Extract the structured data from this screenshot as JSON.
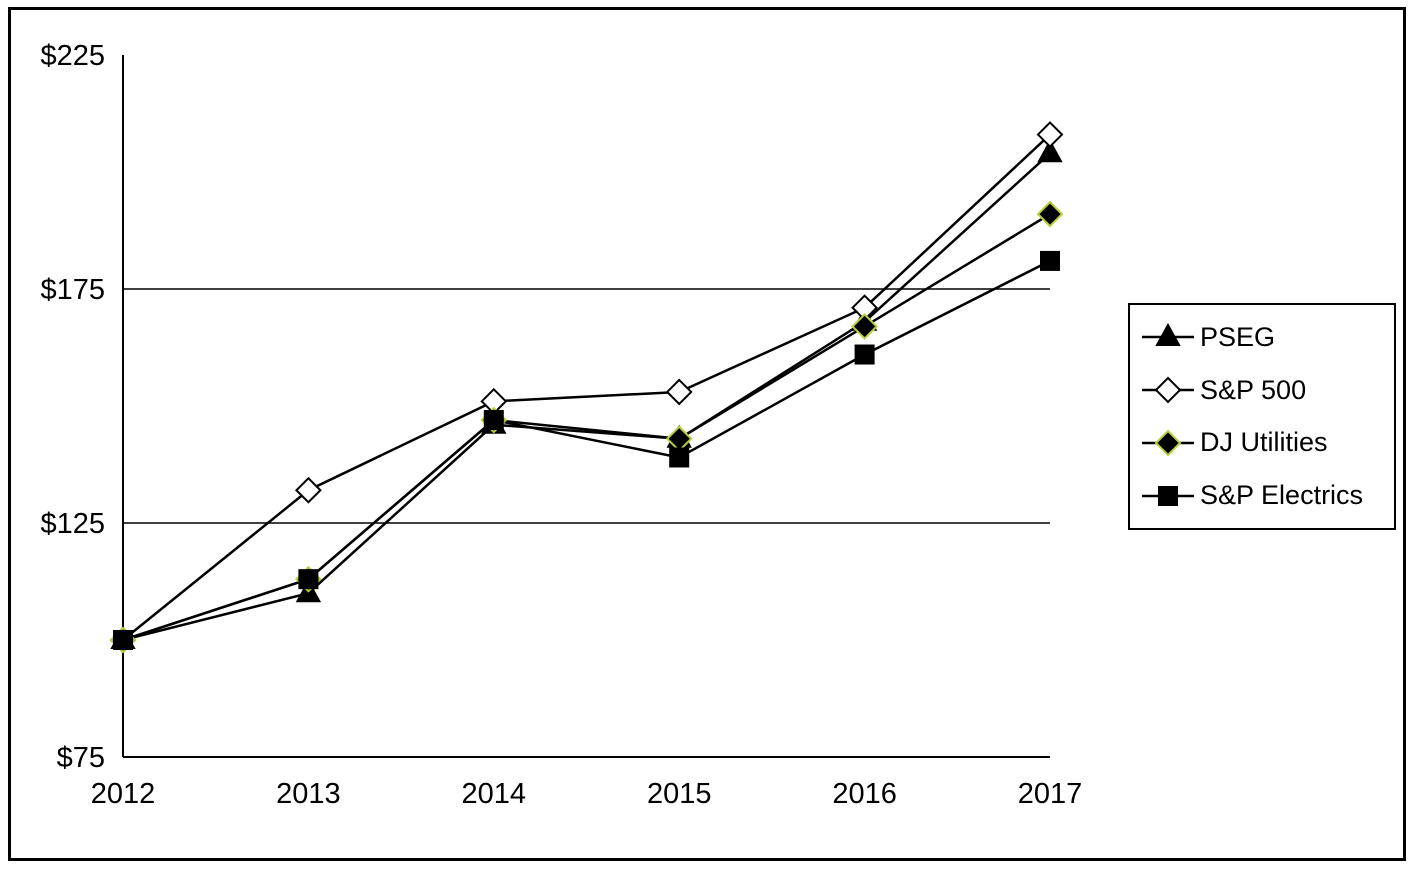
{
  "chart_data": {
    "type": "line",
    "title": "",
    "xlabel": "",
    "ylabel": "",
    "categories": [
      "2012",
      "2013",
      "2014",
      "2015",
      "2016",
      "2017"
    ],
    "series": [
      {
        "name": "PSEG",
        "marker": "triangle",
        "fill": "#000000",
        "edge": "#000000",
        "values": [
          100,
          110,
          146,
          143,
          168,
          204
        ]
      },
      {
        "name": "S&P 500",
        "marker": "diamond",
        "fill": "#ffffff",
        "edge": "#000000",
        "values": [
          100,
          132,
          151,
          153,
          171,
          208
        ]
      },
      {
        "name": "DJ Utilities",
        "marker": "diamond",
        "fill": "#000000",
        "edge": "#b9cf3a",
        "values": [
          100,
          113,
          147,
          143,
          167,
          191
        ]
      },
      {
        "name": "S&P Electrics",
        "marker": "square",
        "fill": "#000000",
        "edge": "#000000",
        "values": [
          100,
          113,
          147,
          139,
          161,
          181
        ]
      }
    ],
    "ylim": [
      75,
      225
    ],
    "yticks": [
      75,
      125,
      175,
      225
    ],
    "ytick_labels": [
      "$75",
      "$125",
      "$175",
      "$225"
    ],
    "grid_values": [
      125,
      175
    ],
    "grid": "horizontal",
    "legend_position": "right",
    "colors": {
      "line": "#000000",
      "axis": "#000000",
      "background": "#ffffff"
    }
  }
}
